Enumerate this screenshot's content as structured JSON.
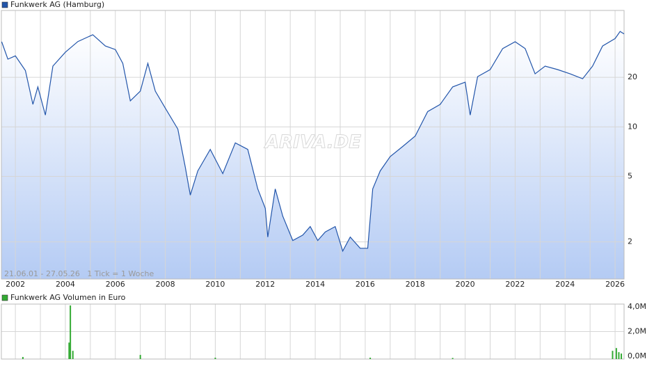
{
  "chart_data": [
    {
      "type": "line",
      "log": true,
      "grid": true,
      "annotation": "21.06.01 - 27.05.26   1 Tick = 1 Woche",
      "watermark": "ARIVA.DE",
      "x": [
        2001.45,
        2001.7,
        2002.0,
        2002.4,
        2002.7,
        2002.9,
        2003.2,
        2003.5,
        2004.0,
        2004.5,
        2005.1,
        2005.6,
        2006.0,
        2006.3,
        2006.6,
        2007.0,
        2007.3,
        2007.6,
        2008.0,
        2008.5,
        2008.8,
        2009.0,
        2009.3,
        2009.8,
        2010.3,
        2010.8,
        2011.3,
        2011.7,
        2012.0,
        2012.1,
        2012.4,
        2012.7,
        2013.1,
        2013.5,
        2013.8,
        2014.1,
        2014.4,
        2014.8,
        2015.1,
        2015.4,
        2015.8,
        2016.1,
        2016.3,
        2016.6,
        2017.0,
        2017.5,
        2018.0,
        2018.5,
        2019.0,
        2019.5,
        2020.0,
        2020.2,
        2020.5,
        2021.0,
        2021.5,
        2022.0,
        2022.4,
        2022.8,
        2023.2,
        2023.7,
        2024.2,
        2024.7,
        2025.1,
        2025.5,
        2026.0,
        2026.2,
        2026.36
      ],
      "series": [
        {
          "name": "Funkwerk AG (Hamburg)",
          "color": "#2255aa",
          "values": [
            32.9,
            25.8,
            27,
            22,
            13.7,
            17.5,
            11.8,
            23.4,
            28.4,
            33,
            36.3,
            31,
            29.5,
            24.3,
            14.4,
            16.5,
            24.3,
            16.5,
            13,
            9.7,
            5.7,
            3.85,
            5.4,
            7.3,
            5.2,
            8,
            7.3,
            4.2,
            3.2,
            2.14,
            4.2,
            2.87,
            2.04,
            2.2,
            2.48,
            2.04,
            2.3,
            2.48,
            1.76,
            2.14,
            1.83,
            1.83,
            4.2,
            5.4,
            6.6,
            7.6,
            8.8,
            12.4,
            13.7,
            17.5,
            18.7,
            11.8,
            20.2,
            22.3,
            29.9,
            32.9,
            29.9,
            21,
            23.4,
            22.3,
            21,
            19.6,
            23.4,
            31,
            34.4,
            38,
            36.7
          ]
        }
      ],
      "xlim": [
        2001.44,
        2026.36
      ],
      "xticks": [
        2002,
        2004,
        2006,
        2008,
        2010,
        2012,
        2014,
        2016,
        2018,
        2020,
        2022,
        2024,
        2026
      ],
      "xminorticks": [
        2003,
        2005,
        2007,
        2009,
        2011,
        2013,
        2015,
        2017,
        2019,
        2021,
        2023,
        2025
      ],
      "ylim": [
        1.19,
        51
      ],
      "yticks": [
        2,
        5,
        10,
        20
      ]
    },
    {
      "type": "bar",
      "grid": true,
      "x": [
        2002.3,
        2004.15,
        2004.2,
        2004.3,
        2007.0,
        2010.0,
        2016.2,
        2019.5,
        2025.9,
        2026.05,
        2026.15,
        2026.25
      ],
      "series": [
        {
          "name": "Funkwerk AG Volumen in Euro",
          "color": "#33aa33",
          "values": [
            150000,
            1200000,
            3900000,
            600000,
            300000,
            100000,
            100000,
            80000,
            600000,
            800000,
            500000,
            400000
          ]
        }
      ],
      "xlim": [
        2001.44,
        2026.36
      ],
      "ylim": [
        0,
        4000000
      ],
      "yticks": [
        {
          "value": 0,
          "label": "0,0M"
        },
        {
          "value": 2000000,
          "label": "2,0M"
        },
        {
          "value": 4000000,
          "label": "4,0M"
        }
      ]
    }
  ]
}
